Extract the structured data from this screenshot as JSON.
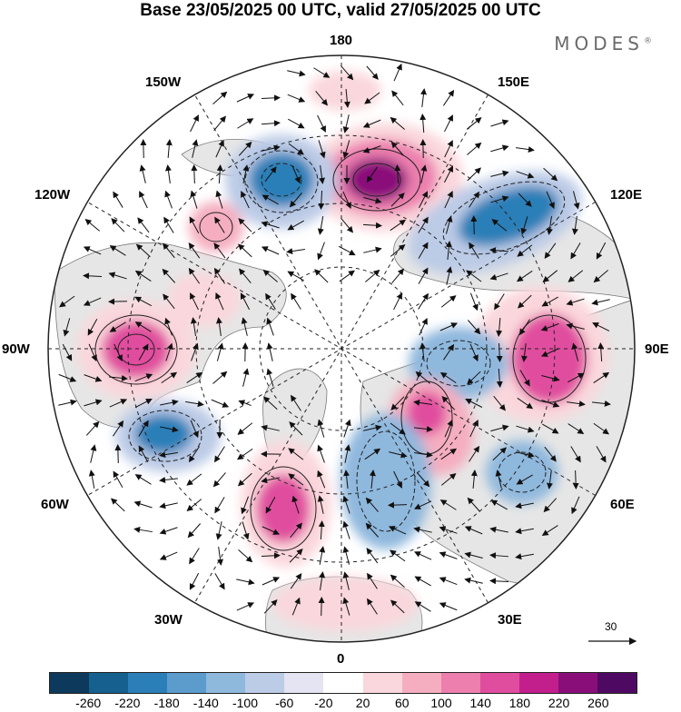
{
  "title": "Base 23/05/2025 00 UTC, valid 27/05/2025 00 UTC",
  "brand": "MODES",
  "brand_mark": "®",
  "longitude_labels": {
    "l180": "180",
    "l150e": "150E",
    "l120e": "120E",
    "l90e": "90E",
    "l60e": "60E",
    "l30e": "30E",
    "l0": "0",
    "l30w": "30W",
    "l60w": "60W",
    "l90w": "90W",
    "l120w": "120W",
    "l150w": "150W"
  },
  "vector_scale_label": "30",
  "colorbar": {
    "ticks": [
      "-260",
      "-220",
      "-180",
      "-140",
      "-100",
      "-60",
      "-20",
      "20",
      "60",
      "100",
      "140",
      "180",
      "220",
      "260"
    ],
    "colors": [
      "#0d3a5c",
      "#15608f",
      "#2a7fb8",
      "#5b9ccc",
      "#8fb8dd",
      "#bccbe6",
      "#e4e4f2",
      "#ffffff",
      "#fad7dc",
      "#f5aec0",
      "#ec7fae",
      "#e04d9e",
      "#c21f8d",
      "#8a0e7a",
      "#4e0a63"
    ]
  },
  "map_colors": {
    "land": "#e6e6e6",
    "coast": "#7a7a7a",
    "grid": "#222222",
    "arrow": "#111111"
  }
}
